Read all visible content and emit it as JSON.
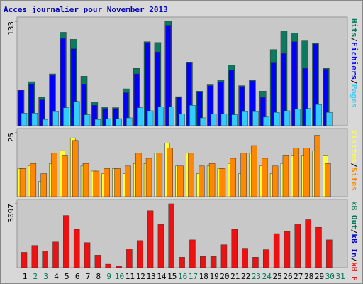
{
  "separator": "/",
  "chart_data": [
    {
      "type": "bar",
      "title": "Acces journalier pour November 2013",
      "ylim": [
        0,
        133
      ],
      "yticks": [
        133
      ],
      "series": [
        {
          "name": "Pages",
          "color": "#33ccff",
          "values": [
            16,
            16,
            8,
            18,
            23,
            31,
            14,
            8,
            9,
            9,
            10,
            23,
            19,
            24,
            24,
            15,
            26,
            10,
            15,
            15,
            14,
            18,
            18,
            11,
            17,
            19,
            21,
            22,
            27,
            17,
            0
          ]
        },
        {
          "name": "Fichiers",
          "color": "#0000ff",
          "values": [
            45,
            53,
            33,
            64,
            111,
            98,
            53,
            26,
            22,
            22,
            42,
            66,
            106,
            94,
            128,
            36,
            80,
            43,
            51,
            56,
            71,
            50,
            57,
            36,
            80,
            92,
            107,
            73,
            104,
            72,
            0
          ]
        },
        {
          "name": "Hits",
          "color": "#0b7a5e",
          "values": [
            45,
            56,
            36,
            66,
            119,
            110,
            63,
            30,
            24,
            23,
            47,
            73,
            107,
            106,
            133,
            37,
            81,
            44,
            52,
            58,
            77,
            51,
            58,
            44,
            97,
            121,
            118,
            108,
            105,
            73,
            0
          ]
        }
      ]
    },
    {
      "type": "bar",
      "ylim": [
        0,
        25
      ],
      "yticks": [
        25
      ],
      "series": [
        {
          "name": "Sites",
          "color": "#ff8800",
          "values": [
            11,
            13,
            9,
            17,
            16,
            22,
            13,
            10,
            11,
            11,
            12,
            17,
            15,
            17,
            19,
            12,
            17,
            12,
            13,
            11,
            15,
            17,
            20,
            15,
            12,
            16,
            19,
            19,
            24,
            13,
            0
          ]
        },
        {
          "name": "Visites",
          "color": "#ffff33",
          "values": [
            11,
            12,
            6,
            13,
            18,
            23,
            12,
            10,
            9,
            11,
            9,
            13,
            13,
            17,
            21,
            12,
            17,
            9,
            12,
            11,
            13,
            9,
            17,
            12,
            9,
            13,
            16,
            16,
            18,
            16,
            0
          ]
        }
      ]
    },
    {
      "type": "bar",
      "ylim": [
        0,
        3097
      ],
      "yticks": [
        3097
      ],
      "categories": [
        "1",
        "2",
        "3",
        "4",
        "5",
        "6",
        "7",
        "8",
        "9",
        "10",
        "11",
        "12",
        "13",
        "14",
        "15",
        "16",
        "17",
        "18",
        "19",
        "20",
        "21",
        "22",
        "23",
        "24",
        "25",
        "26",
        "27",
        "28",
        "29",
        "30",
        "31"
      ],
      "category_colors": [
        "#000",
        "#007755",
        "#007755",
        "#000",
        "#000",
        "#000",
        "#000",
        "#000",
        "#007755",
        "#007755",
        "#000",
        "#000",
        "#000",
        "#000",
        "#000",
        "#007755",
        "#007755",
        "#000",
        "#000",
        "#000",
        "#000",
        "#000",
        "#007755",
        "#007755",
        "#000",
        "#000",
        "#000",
        "#000",
        "#000",
        "#007755",
        "#007755"
      ],
      "series": [
        {
          "name": "kB F",
          "color": "#ee1111",
          "values": [
            741,
            1077,
            808,
            1245,
            2525,
            1852,
            1212,
            606,
            168,
            67,
            909,
            1313,
            2760,
            2087,
            3097,
            505,
            1346,
            539,
            539,
            1111,
            1852,
            943,
            505,
            875,
            1650,
            1750,
            2121,
            2323,
            1953,
            1346,
            0
          ]
        },
        {
          "name": "kB In",
          "color": "#0000cc",
          "legend_only": true
        },
        {
          "name": "kB Out",
          "color": "#007755",
          "legend_only": true
        }
      ]
    }
  ]
}
